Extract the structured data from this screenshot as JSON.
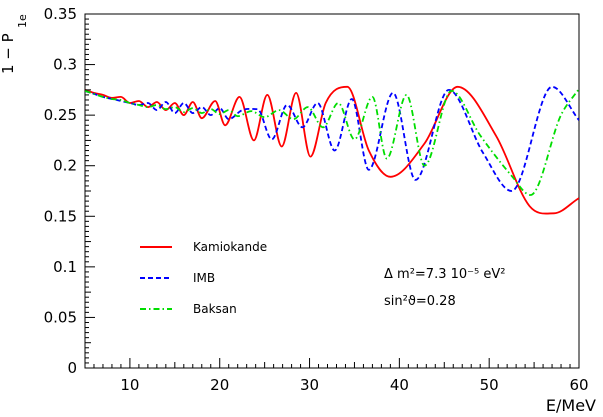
{
  "chart_data": {
    "type": "line",
    "xlabel": "E/MeV",
    "ylabel": "1 − P",
    "ylabel_sub": "1e",
    "xlim": [
      5,
      60
    ],
    "ylim": [
      0,
      0.35
    ],
    "xticks": [
      10,
      20,
      30,
      40,
      50,
      60
    ],
    "yticks": [
      0,
      0.05,
      0.1,
      0.15,
      0.2,
      0.25,
      0.3,
      0.35
    ],
    "ytick_labels": [
      "0",
      "0.05",
      "0.1",
      "0.15",
      "0.2",
      "0.25",
      "0.3",
      "0.35"
    ],
    "grid": false,
    "legend_placement": "lower-left",
    "series": [
      {
        "name": "Kamiokande",
        "color": "#ff0000",
        "dash": "solid",
        "x": [
          5,
          6,
          7,
          8,
          9,
          10,
          11,
          12,
          13,
          14,
          15,
          16,
          17,
          18,
          19.5,
          20.6,
          22.2,
          23.8,
          25.3,
          26.9,
          28.5,
          30.1,
          31.8,
          34.2,
          36.6,
          39,
          42.8,
          46.5,
          50.8,
          54.5,
          57.2,
          60
        ],
        "y": [
          0.275,
          0.272,
          0.27,
          0.267,
          0.268,
          0.262,
          0.264,
          0.258,
          0.263,
          0.255,
          0.262,
          0.25,
          0.263,
          0.247,
          0.264,
          0.24,
          0.268,
          0.225,
          0.27,
          0.219,
          0.272,
          0.209,
          0.262,
          0.278,
          0.215,
          0.189,
          0.222,
          0.278,
          0.229,
          0.16,
          0.153,
          0.168
        ]
      },
      {
        "name": "IMB",
        "color": "#0000ff",
        "dash": "dashed",
        "x": [
          5,
          6,
          7,
          8,
          9,
          10,
          11,
          12,
          13,
          14,
          15,
          16,
          17,
          18,
          19,
          20,
          21,
          22.5,
          24.2,
          25.8,
          27.5,
          29.2,
          30.9,
          32.8,
          34.7,
          36.6,
          39.3,
          41.8,
          45.5,
          49.3,
          52.5,
          57,
          60
        ],
        "y": [
          0.274,
          0.271,
          0.268,
          0.266,
          0.264,
          0.262,
          0.26,
          0.262,
          0.255,
          0.263,
          0.252,
          0.262,
          0.252,
          0.258,
          0.25,
          0.257,
          0.246,
          0.255,
          0.256,
          0.226,
          0.26,
          0.238,
          0.262,
          0.215,
          0.266,
          0.196,
          0.272,
          0.186,
          0.275,
          0.213,
          0.175,
          0.278,
          0.245
        ]
      },
      {
        "name": "Baksan",
        "color": "#00dd00",
        "dash": "dashdot",
        "x": [
          5,
          6,
          7,
          8,
          9,
          10,
          11,
          12,
          13,
          14,
          15,
          16,
          17,
          18,
          19,
          20,
          21,
          22,
          23.5,
          25,
          26.6,
          28.2,
          29.8,
          31.5,
          33.2,
          35,
          37,
          38.6,
          40.8,
          42.8,
          45.8,
          49,
          52.5,
          54.6,
          58,
          60
        ],
        "y": [
          0.274,
          0.271,
          0.268,
          0.266,
          0.265,
          0.262,
          0.26,
          0.258,
          0.26,
          0.256,
          0.258,
          0.253,
          0.257,
          0.252,
          0.256,
          0.251,
          0.255,
          0.249,
          0.254,
          0.248,
          0.255,
          0.246,
          0.258,
          0.238,
          0.262,
          0.226,
          0.268,
          0.207,
          0.27,
          0.2,
          0.274,
          0.23,
          0.19,
          0.171,
          0.25,
          0.276
        ]
      }
    ],
    "annotations": {
      "dm2": "Δ m²=7.3 10⁻⁵ eV²",
      "sin2": "sin²ϑ=0.28"
    }
  }
}
